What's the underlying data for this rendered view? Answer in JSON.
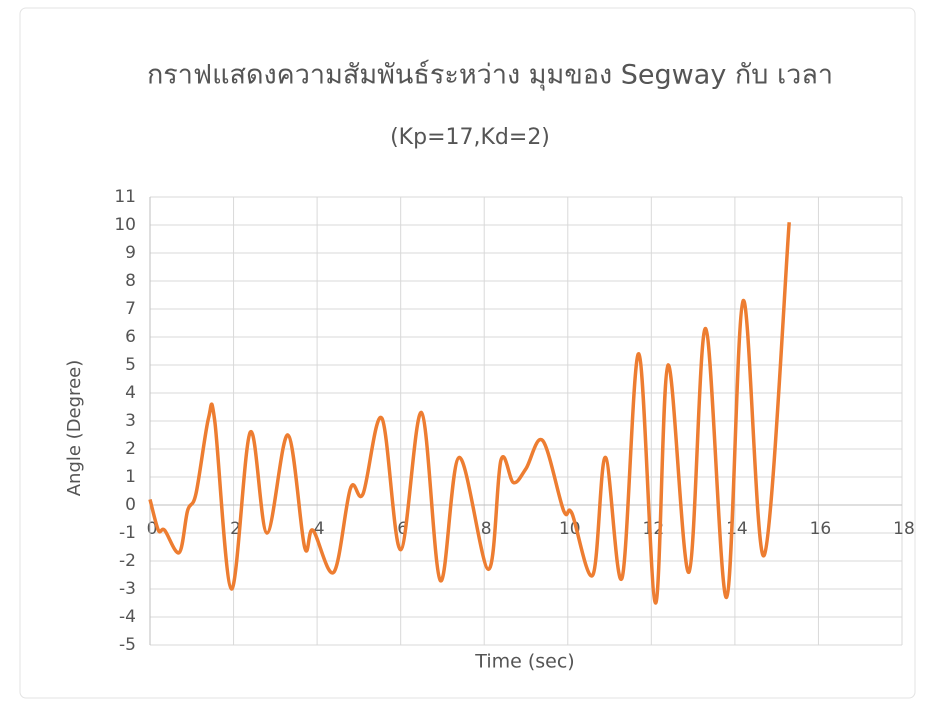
{
  "chart_data": {
    "type": "line",
    "title": "กราฟแสดงความสัมพันธ์ระหว่าง มุมของ Segway กับ เวลา",
    "subtitle": "(Kp=17,Kd=2)",
    "x_label": "Time (sec)",
    "y_label": "Angle (Degree)",
    "x": [
      0,
      0.2,
      0.35,
      0.7,
      0.9,
      1.1,
      1.4,
      1.55,
      1.95,
      2.4,
      2.8,
      3.3,
      3.7,
      3.9,
      4.4,
      4.8,
      5.1,
      5.55,
      6.0,
      6.5,
      6.95,
      7.4,
      8.1,
      8.4,
      8.7,
      9.0,
      9.4,
      9.9,
      10.1,
      10.6,
      10.9,
      11.3,
      11.7,
      12.1,
      12.4,
      12.9,
      13.3,
      13.8,
      14.2,
      14.7,
      15.3
    ],
    "values": [
      0.2,
      -0.9,
      -0.9,
      -1.7,
      -0.2,
      0.4,
      3.1,
      3.0,
      -3.0,
      2.6,
      -1.0,
      2.5,
      -1.5,
      -0.9,
      -2.4,
      0.6,
      0.4,
      3.1,
      -1.6,
      3.3,
      -2.7,
      1.7,
      -2.3,
      1.6,
      0.8,
      1.3,
      2.3,
      -0.2,
      -0.3,
      -2.5,
      1.7,
      -2.6,
      5.4,
      -3.5,
      5.0,
      -2.4,
      6.3,
      -3.3,
      7.3,
      -1.8,
      10.1
    ],
    "color": "#ed7d31",
    "xlim": [
      0,
      18
    ],
    "xticks": [
      0,
      2,
      4,
      6,
      8,
      10,
      12,
      14,
      16,
      18
    ],
    "ylim": [
      -5,
      11
    ],
    "yticks": [
      -5,
      -4,
      -3,
      -2,
      -1,
      0,
      1,
      2,
      3,
      4,
      5,
      6,
      7,
      8,
      9,
      10,
      11
    ],
    "grid": true
  }
}
